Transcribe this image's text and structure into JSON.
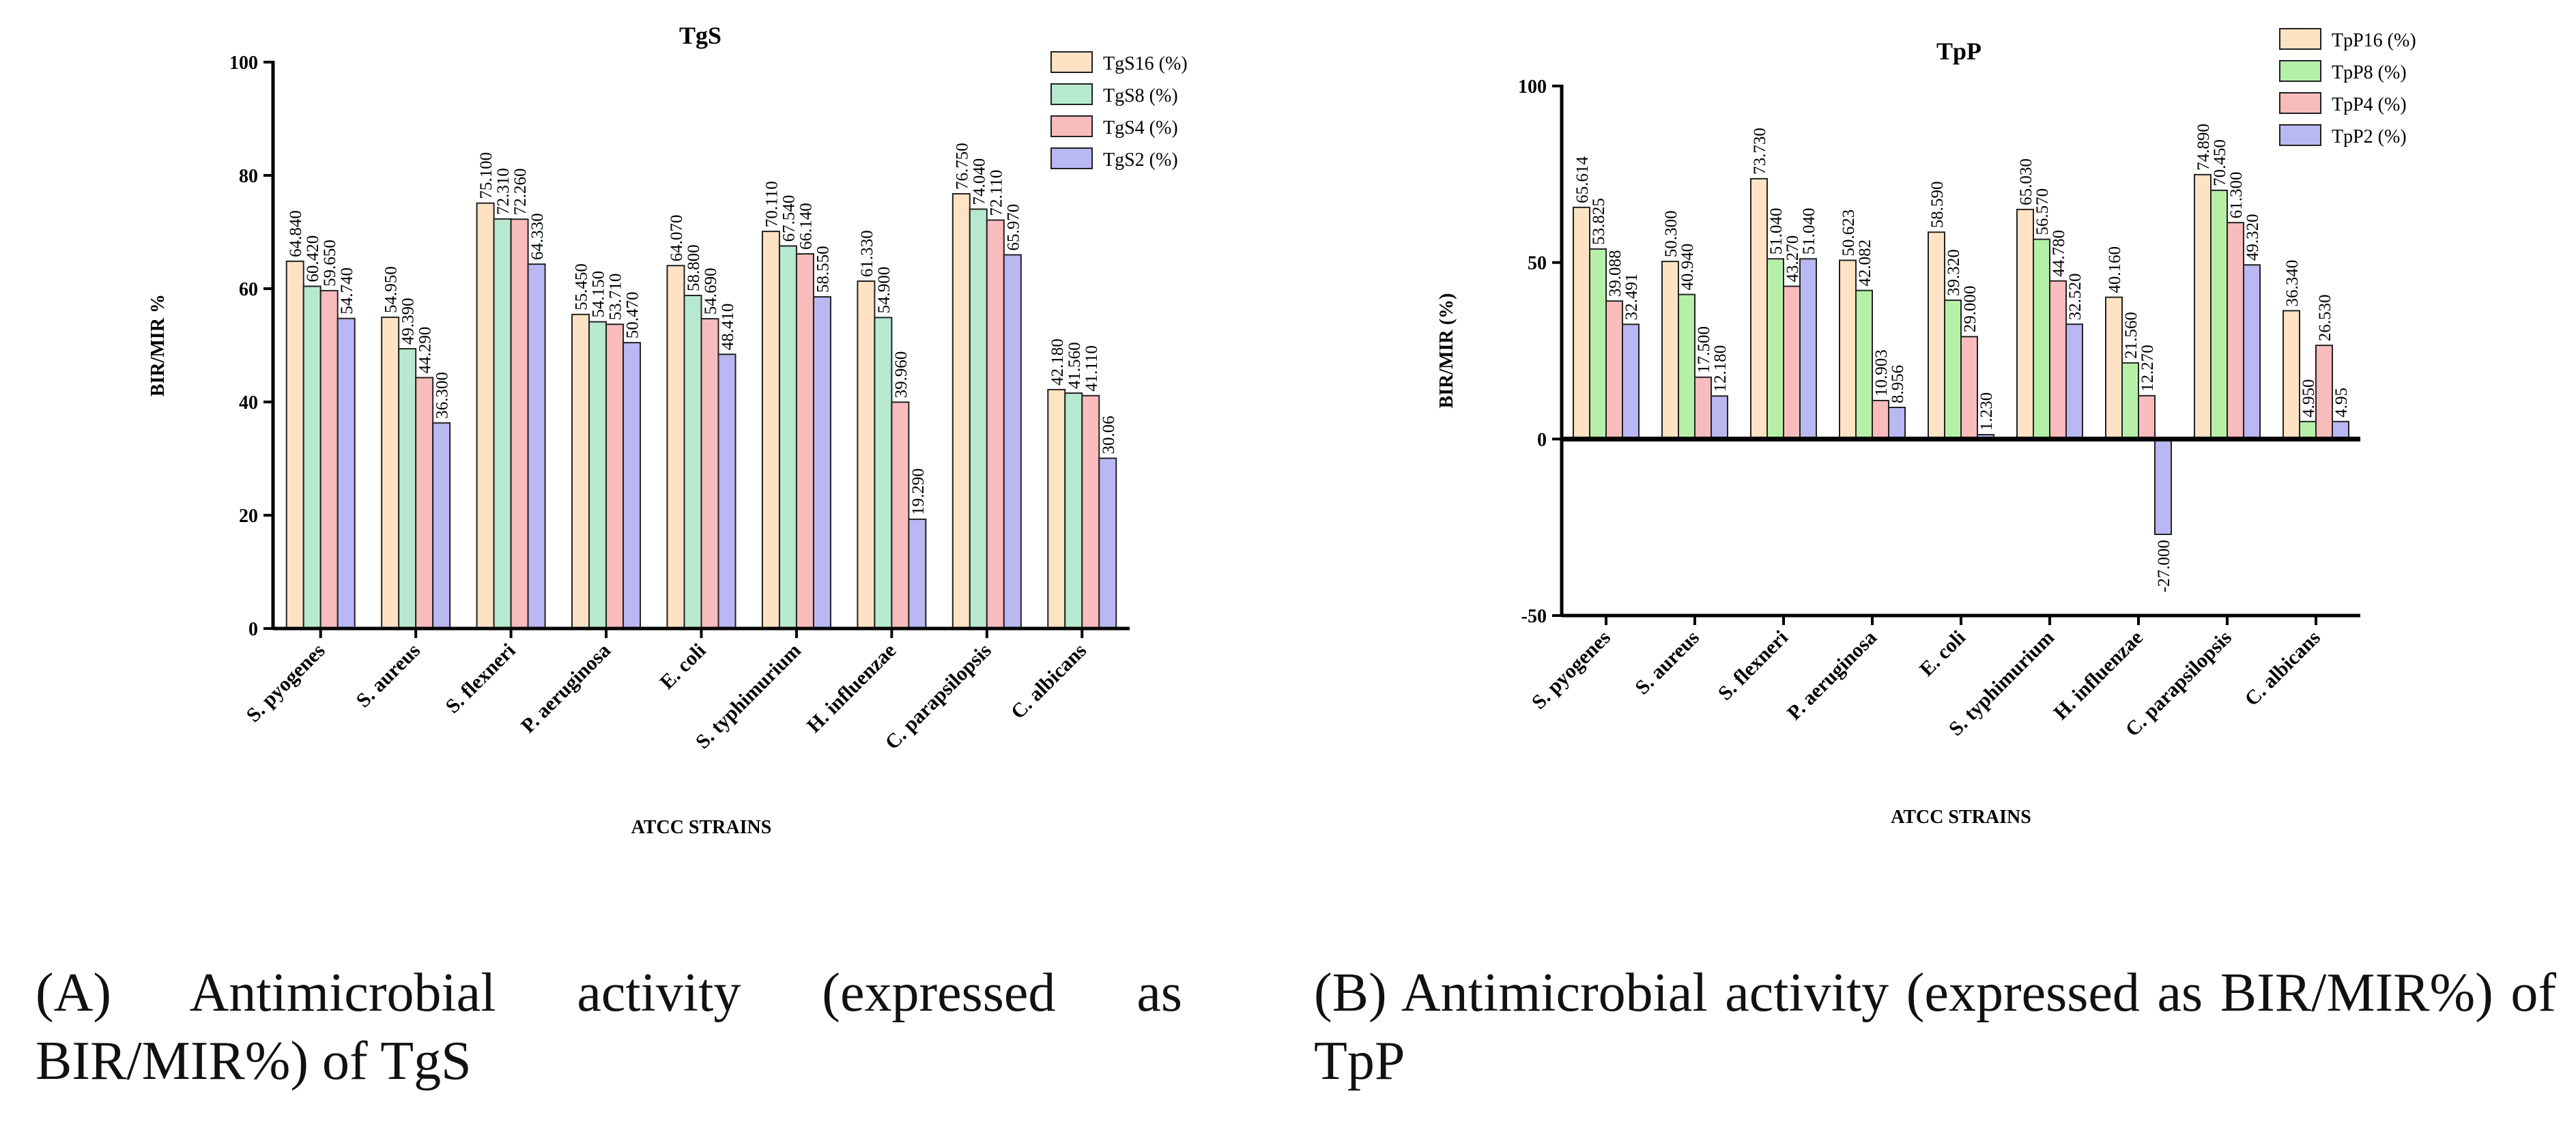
{
  "colors": {
    "s16": "#fde3c4",
    "s8": "#b7e9d1",
    "s4": "#f9bcbd",
    "s2": "#b9b8f3",
    "p16": "#fde3c4",
    "p8": "#b6f0a8",
    "p4": "#f9bcbd",
    "p2": "#b9b8f3",
    "axis": "#000000"
  },
  "chart_data": [
    {
      "type": "bar",
      "title": "TgS",
      "xlabel": "ATCC STRAINS",
      "ylabel": "BIR/MIR %",
      "ylim": [
        0,
        100
      ],
      "yticks": [
        "0",
        "20",
        "40",
        "60",
        "80",
        "100"
      ],
      "categories": [
        "S. pyogenes",
        "S. aureus",
        "S. flexneri",
        "P. aeruginosa",
        "E. coli",
        "S. typhimurium",
        "H. influenzae",
        "C. parapsilopsis",
        "C. albicans"
      ],
      "legend_position": "top-right",
      "series": [
        {
          "name": "TgS16 (%)",
          "values": [
            64.84,
            54.95,
            75.1,
            55.45,
            64.07,
            70.11,
            61.33,
            76.75,
            42.18
          ],
          "labels": [
            "64.840",
            "54.950",
            "75.100",
            "55.450",
            "64.070",
            "70.110",
            "61.330",
            "76.750",
            "42.180"
          ]
        },
        {
          "name": "TgS8 (%)",
          "values": [
            60.42,
            49.39,
            72.31,
            54.15,
            58.8,
            67.54,
            54.9,
            74.04,
            41.56
          ],
          "labels": [
            "60.420",
            "49.390",
            "72.310",
            "54.150",
            "58.800",
            "67.540",
            "54.900",
            "74.040",
            "41.560"
          ]
        },
        {
          "name": "TgS4 (%)",
          "values": [
            59.65,
            44.29,
            72.26,
            53.71,
            54.69,
            66.14,
            39.96,
            72.11,
            41.11
          ],
          "labels": [
            "59.650",
            "44.290",
            "72.260",
            "53.710",
            "54.690",
            "66.140",
            "39.960",
            "72.110",
            "41.110"
          ]
        },
        {
          "name": "TgS2 (%)",
          "values": [
            54.74,
            36.3,
            64.33,
            50.47,
            48.41,
            58.55,
            19.29,
            65.97,
            30.06
          ],
          "labels": [
            "54.740",
            "36.300",
            "64.330",
            "50.470",
            "48.410",
            "58.550",
            "19.290",
            "65.970",
            "30.06"
          ]
        }
      ]
    },
    {
      "type": "bar",
      "title": "TpP",
      "xlabel": "ATCC STRAINS",
      "ylabel": "BIR/MIR (%)",
      "ylim": [
        -50,
        100
      ],
      "yticks": [
        "-50",
        "0",
        "50",
        "100"
      ],
      "categories": [
        "S. pyogenes",
        "S. aureus",
        "S. flexneri",
        "P. aeruginosa",
        "E. coli",
        "S. typhimurium",
        "H. influenzae",
        "C. parapsilopsis",
        "C. albicans"
      ],
      "legend_position": "top-right",
      "series": [
        {
          "name": "TpP16 (%)",
          "values": [
            65.614,
            50.3,
            73.73,
            50.623,
            58.59,
            65.03,
            40.16,
            74.89,
            36.34
          ],
          "labels": [
            "65.614",
            "50.300",
            "73.730",
            "50.623",
            "58.590",
            "65.030",
            "40.160",
            "74.890",
            "36.340"
          ]
        },
        {
          "name": "TpP8 (%)",
          "values": [
            53.825,
            40.94,
            51.04,
            42.082,
            39.32,
            56.57,
            21.56,
            70.45,
            4.95
          ],
          "labels": [
            "53.825",
            "40.940",
            "51.040",
            "42.082",
            "39.320",
            "56.570",
            "21.560",
            "70.450",
            "4.950"
          ]
        },
        {
          "name": "TpP4 (%)",
          "values": [
            39.088,
            17.5,
            43.27,
            10.903,
            29.0,
            44.78,
            12.27,
            61.3,
            26.53
          ],
          "labels": [
            "39.088",
            "17.500",
            "43.270",
            "10.903",
            "29.000",
            "44.780",
            "12.270",
            "61.300",
            "26.530"
          ]
        },
        {
          "name": "TpP2 (%)",
          "values": [
            32.491,
            12.18,
            51.04,
            8.956,
            1.23,
            32.52,
            -27.0,
            49.32,
            4.95
          ],
          "labels": [
            "32.491",
            "12.180",
            "51.040",
            "8.956",
            "1.230",
            "32.520",
            "-27.000",
            "49.320",
            "4.95"
          ]
        }
      ]
    }
  ],
  "captions": {
    "a": "(A) Antimicrobial activity (expressed as BIR/MIR%) of TgS",
    "b": "(B) Antimicrobial activity (expressed as BIR/MIR%) of TpP"
  }
}
